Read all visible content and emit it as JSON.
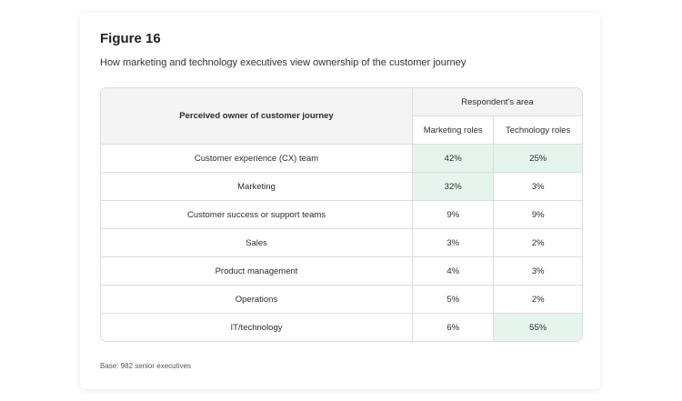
{
  "figure": {
    "title": "Figure 16",
    "subtitle": "How marketing and technology executives view ownership of the customer journey",
    "base_note": "Base: 982 senior executives"
  },
  "table": {
    "owner_header": "Perceived owner of customer journey",
    "group_header": "Respondent's area",
    "columns": [
      "Marketing roles",
      "Technology roles"
    ],
    "highlight_color": "#e6f4ee",
    "rows": [
      {
        "owner": "Customer experience (CX) team",
        "values": [
          "42%",
          "25%"
        ],
        "highlight": [
          true,
          true
        ]
      },
      {
        "owner": "Marketing",
        "values": [
          "32%",
          "3%"
        ],
        "highlight": [
          true,
          false
        ]
      },
      {
        "owner": "Customer success or support teams",
        "values": [
          "9%",
          "9%"
        ],
        "highlight": [
          false,
          false
        ]
      },
      {
        "owner": "Sales",
        "values": [
          "3%",
          "2%"
        ],
        "highlight": [
          false,
          false
        ]
      },
      {
        "owner": "Product management",
        "values": [
          "4%",
          "3%"
        ],
        "highlight": [
          false,
          false
        ]
      },
      {
        "owner": "Operations",
        "values": [
          "5%",
          "2%"
        ],
        "highlight": [
          false,
          false
        ]
      },
      {
        "owner": "IT/technology",
        "values": [
          "6%",
          "55%"
        ],
        "highlight": [
          false,
          true
        ]
      }
    ]
  }
}
